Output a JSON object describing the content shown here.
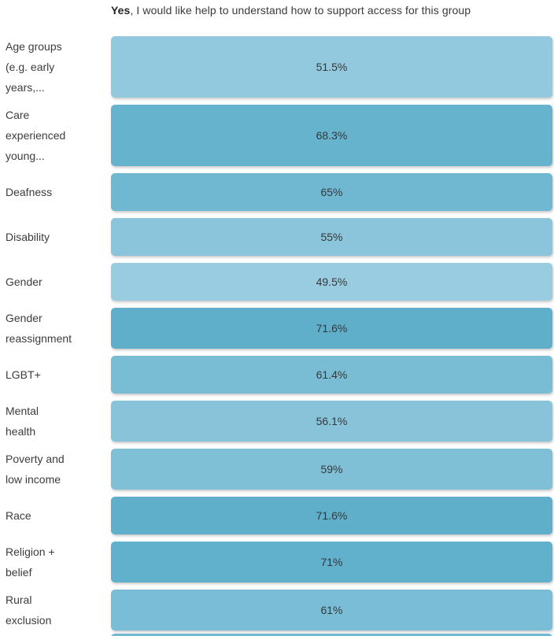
{
  "chart_data": {
    "type": "bar",
    "orientation": "horizontal",
    "value_encoding": "color-shade, full-width bars with centered percentage labels",
    "title": {
      "bold": "Yes",
      "rest": ", I would like help to understand how to support access for this group"
    },
    "value_format": "percent",
    "xlim": [
      0,
      100
    ],
    "grid": "off",
    "color_scale": {
      "low_value": 49.5,
      "low_color": "#9ACCE1",
      "high_value": 71.6,
      "high_color": "#5FAFCB"
    },
    "categories": [
      "Age groups (e.g. early years,...",
      "Care experienced young...",
      "Deafness",
      "Disability",
      "Gender",
      "Gender reassignment",
      "LGBT+",
      "Mental health",
      "Poverty and low income",
      "Race",
      "Religion + belief",
      "Rural exclusion"
    ],
    "values": [
      51.5,
      68.3,
      65,
      55,
      49.5,
      71.6,
      61.4,
      56.1,
      59,
      71.6,
      71,
      61
    ],
    "rows": [
      {
        "label": "Age groups (e.g. early years,...",
        "value": 51.5,
        "display": "51.5%",
        "color": "#93C9DE"
      },
      {
        "label": "Care experienced young...",
        "value": 68.3,
        "display": "68.3%",
        "color": "#66B3CE"
      },
      {
        "label": "Deafness",
        "value": 65,
        "display": "65%",
        "color": "#70B8D2"
      },
      {
        "label": "Disability",
        "value": 55,
        "display": "55%",
        "color": "#8AC5DB"
      },
      {
        "label": "Gender",
        "value": 49.5,
        "display": "49.5%",
        "color": "#9ACCE1"
      },
      {
        "label": "Gender reassignment",
        "value": 71.6,
        "display": "71.6%",
        "color": "#5FAFCB"
      },
      {
        "label": "LGBT+",
        "value": 61.4,
        "display": "61.4%",
        "color": "#79BDD5"
      },
      {
        "label": "Mental health",
        "value": 56.1,
        "display": "56.1%",
        "color": "#88C3DA"
      },
      {
        "label": "Poverty and low income",
        "value": 59,
        "display": "59%",
        "color": "#7FC0D7"
      },
      {
        "label": "Race",
        "value": 71.6,
        "display": "71.6%",
        "color": "#5FAFCB"
      },
      {
        "label": "Religion + belief",
        "value": 71,
        "display": "71%",
        "color": "#61B0CC"
      },
      {
        "label": "Rural exclusion",
        "value": 61,
        "display": "61%",
        "color": "#7ABDD6"
      }
    ],
    "partial_next_bar": {
      "color": "#72B9D3"
    }
  }
}
